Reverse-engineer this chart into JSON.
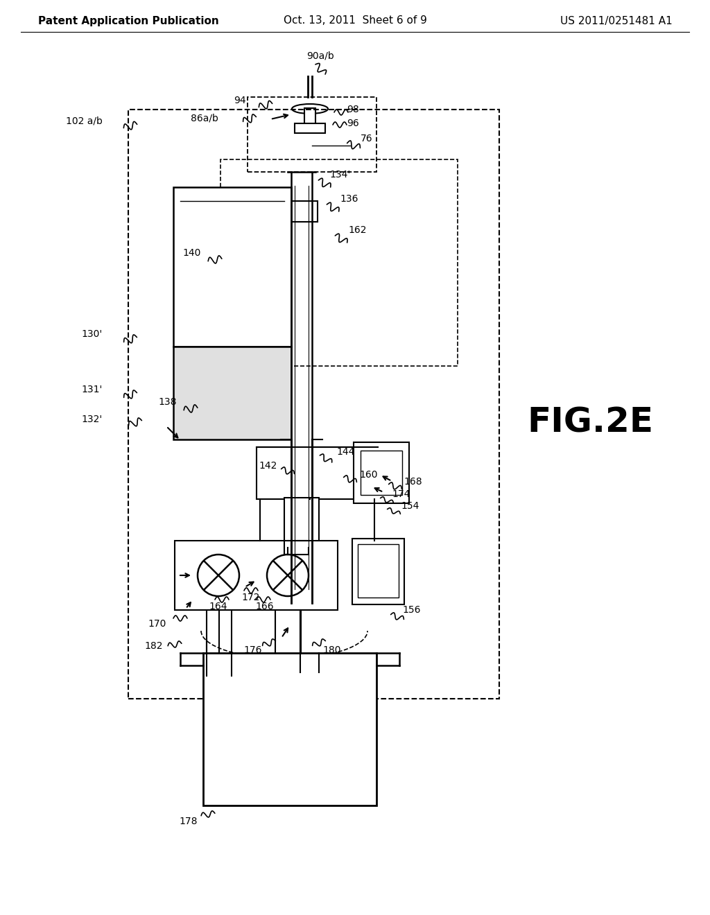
{
  "title_left": "Patent Application Publication",
  "title_center": "Oct. 13, 2011  Sheet 6 of 9",
  "title_right": "US 2011/0251481 A1",
  "fig_label": "FIG.2E",
  "background_color": "#ffffff",
  "line_color": "#000000",
  "text_color": "#000000",
  "header_fontsize": 11,
  "label_fontsize": 10,
  "fig_label_fontsize": 36
}
